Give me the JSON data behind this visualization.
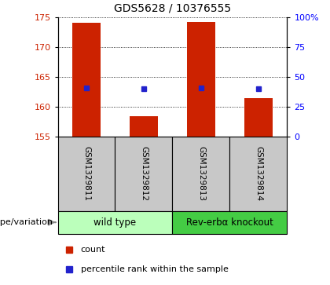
{
  "title": "GDS5628 / 10376555",
  "samples": [
    "GSM1329811",
    "GSM1329812",
    "GSM1329813",
    "GSM1329814"
  ],
  "bar_bottoms": [
    155,
    155,
    155,
    155
  ],
  "bar_tops": [
    174.0,
    158.5,
    174.2,
    161.5
  ],
  "blue_y": [
    163.2,
    163.0,
    163.2,
    163.0
  ],
  "ylim": [
    155,
    175
  ],
  "yticks_left": [
    155,
    160,
    165,
    170,
    175
  ],
  "yticks_right": [
    0,
    25,
    50,
    75,
    100
  ],
  "right_ytick_labels": [
    "0",
    "25",
    "50",
    "75",
    "100%"
  ],
  "bar_color": "#cc2200",
  "blue_color": "#2222cc",
  "label_bg": "#c8c8c8",
  "group1_label": "wild type",
  "group2_label": "Rev-erbα knockout",
  "group1_bg": "#bbffbb",
  "group2_bg": "#44cc44",
  "genotype_label": "genotype/variation",
  "legend_count": "count",
  "legend_pct": "percentile rank within the sample",
  "bar_width": 0.5
}
